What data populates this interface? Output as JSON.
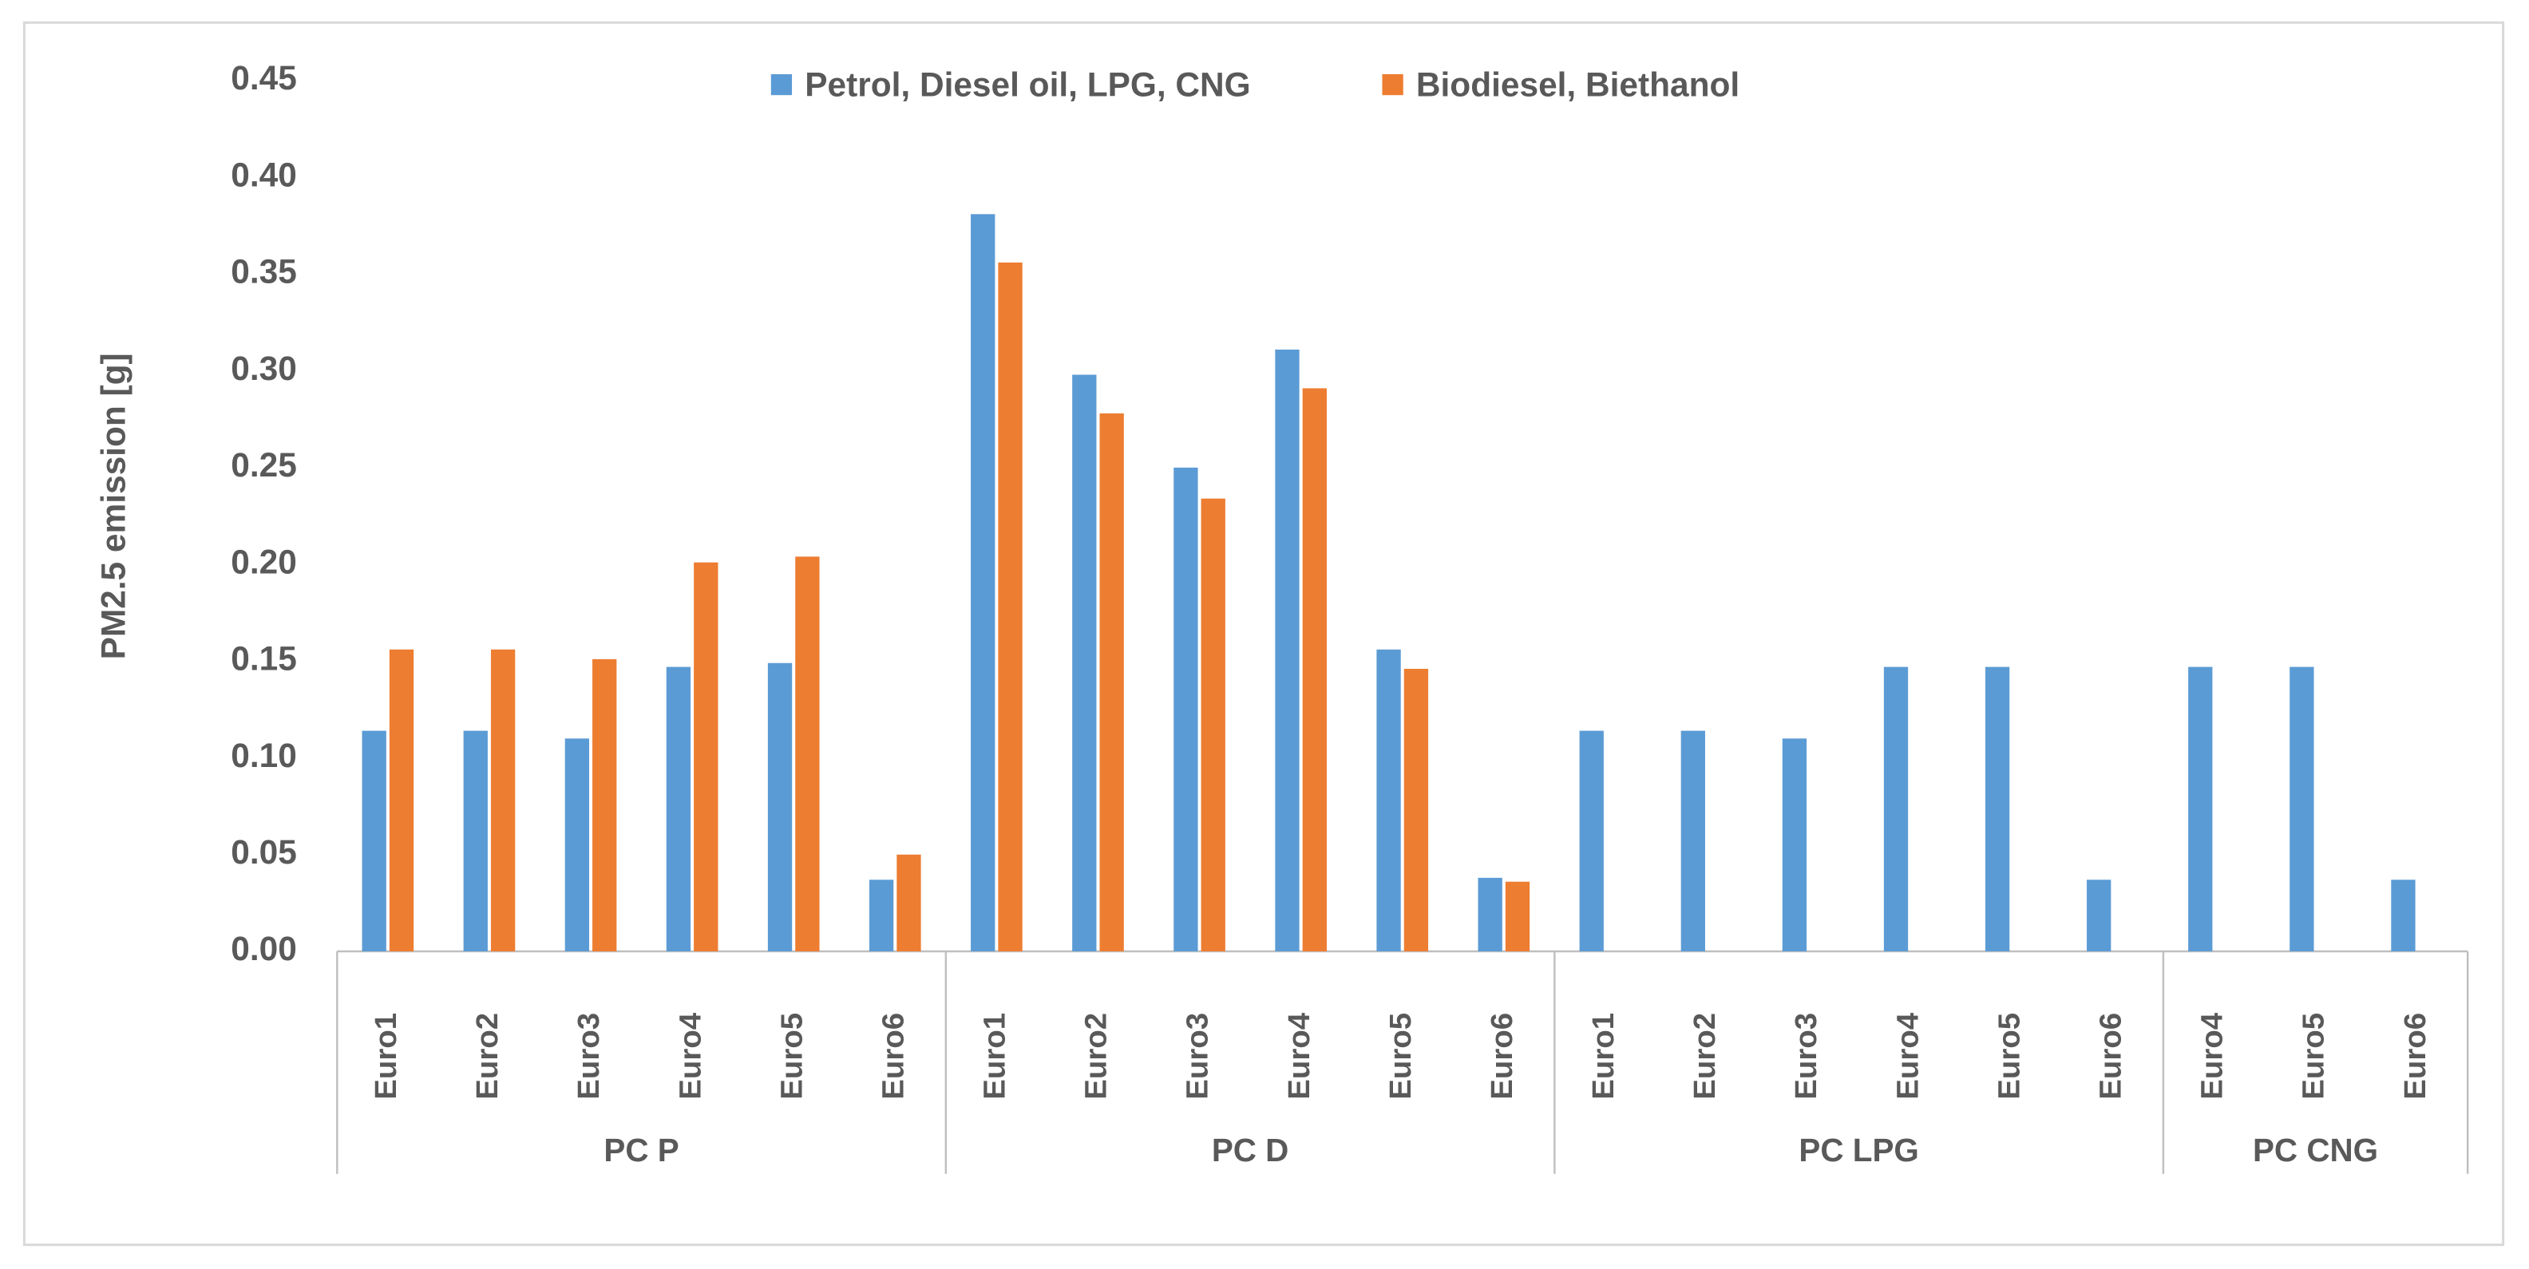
{
  "chart_data": {
    "type": "bar",
    "y_label": "PM2.5 emission [g]",
    "groups": [
      {
        "name": "PC P",
        "categories": [
          "Euro1",
          "Euro2",
          "Euro3",
          "Euro4",
          "Euro5",
          "Euro6"
        ]
      },
      {
        "name": "PC D",
        "categories": [
          "Euro1",
          "Euro2",
          "Euro3",
          "Euro4",
          "Euro5",
          "Euro6"
        ]
      },
      {
        "name": "PC LPG",
        "categories": [
          "Euro1",
          "Euro2",
          "Euro3",
          "Euro4",
          "Euro5",
          "Euro6"
        ]
      },
      {
        "name": "PC CNG",
        "categories": [
          "Euro4",
          "Euro5",
          "Euro6"
        ]
      }
    ],
    "series": [
      {
        "name": "Petrol, Diesel oil, LPG, CNG",
        "color": "#5b9bd5",
        "values": [
          0.114,
          0.114,
          0.11,
          0.147,
          0.149,
          0.037,
          0.381,
          0.298,
          0.25,
          0.311,
          0.156,
          0.038,
          0.114,
          0.114,
          0.11,
          0.147,
          0.147,
          0.037,
          0.147,
          0.147,
          0.037
        ]
      },
      {
        "name": "Biodiesel, Biethanol",
        "color": "#ed7d31",
        "values": [
          0.156,
          0.156,
          0.151,
          0.201,
          0.204,
          0.05,
          0.356,
          0.278,
          0.234,
          0.291,
          0.146,
          0.036,
          null,
          null,
          null,
          null,
          null,
          null,
          null,
          null,
          null
        ]
      }
    ],
    "ylim": [
      0,
      0.45
    ],
    "yticks": [
      {
        "value": 0,
        "label": "0.00"
      },
      {
        "value": 0.05,
        "label": "0.05"
      },
      {
        "value": 0.1,
        "label": "0.10"
      },
      {
        "value": 0.15,
        "label": "0.15"
      },
      {
        "value": 0.2,
        "label": "0.20"
      },
      {
        "value": 0.25,
        "label": "0.25"
      },
      {
        "value": 0.3,
        "label": "0.30"
      },
      {
        "value": 0.35,
        "label": "0.35"
      },
      {
        "value": 0.4,
        "label": "0.40"
      },
      {
        "value": 0.45,
        "label": "0.45"
      }
    ],
    "grid": false,
    "legend": "top"
  }
}
